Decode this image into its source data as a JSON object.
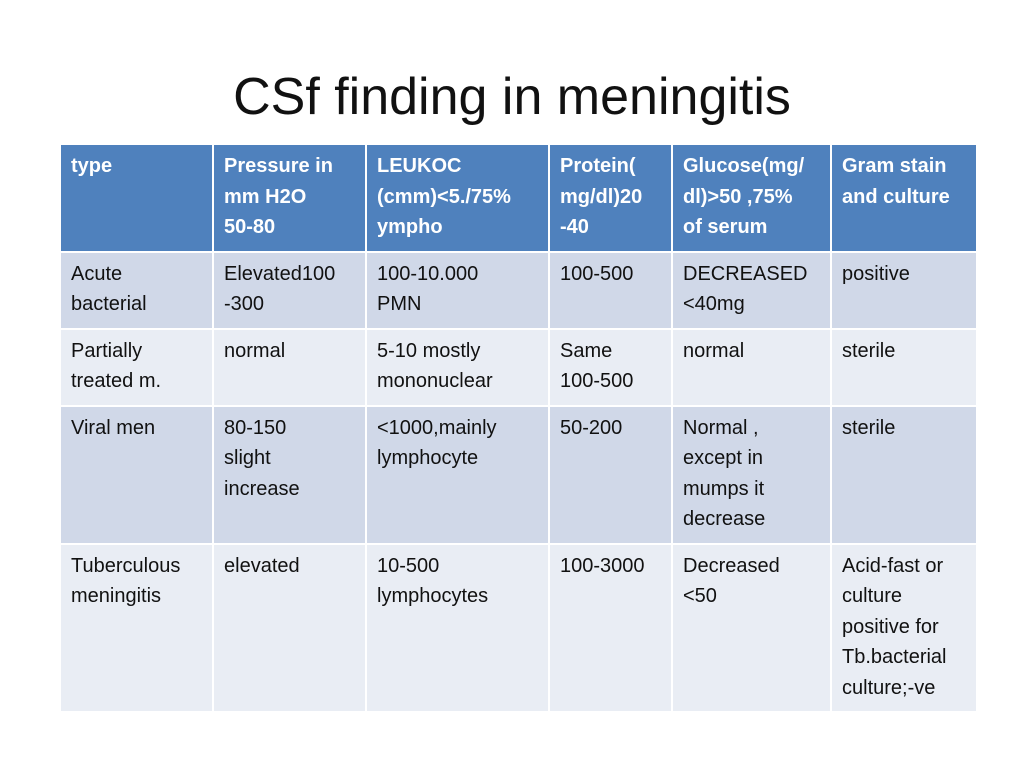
{
  "title": "CSf finding in meningitis",
  "table": {
    "headers": [
      "type",
      "Pressure in\nmm H2O\n50-80",
      "LEUKOC\n(cmm)<5./75%\nympho",
      "Protein(\nmg/dl)20\n-40",
      "Glucose(mg/\ndl)>50 ,75%\nof serum",
      "Gram stain\nand culture"
    ],
    "rows": [
      [
        "Acute\nbacterial",
        "Elevated100\n-300",
        "100-10.000\nPMN",
        "100-500",
        "DECREASED\n<40mg",
        "positive"
      ],
      [
        "Partially\ntreated m.",
        "normal",
        "5-10 mostly\nmononuclear",
        "Same\n100-500",
        "normal",
        "sterile"
      ],
      [
        "Viral men",
        "80-150\nslight\nincrease",
        "<1000,mainly\nlymphocyte",
        "50-200",
        "Normal ,\nexcept in\nmumps it\ndecrease",
        "sterile"
      ],
      [
        "Tuberculous\nmeningitis",
        "elevated",
        "10-500\nlymphocytes",
        "100-3000",
        "Decreased\n<50",
        "Acid-fast or\nculture\npositive for\nTb.bacterial\nculture;-ve"
      ]
    ]
  },
  "colors": {
    "header_bg": "#4f81bd",
    "row_odd_bg": "#d0d8e8",
    "row_even_bg": "#e9edf4"
  }
}
